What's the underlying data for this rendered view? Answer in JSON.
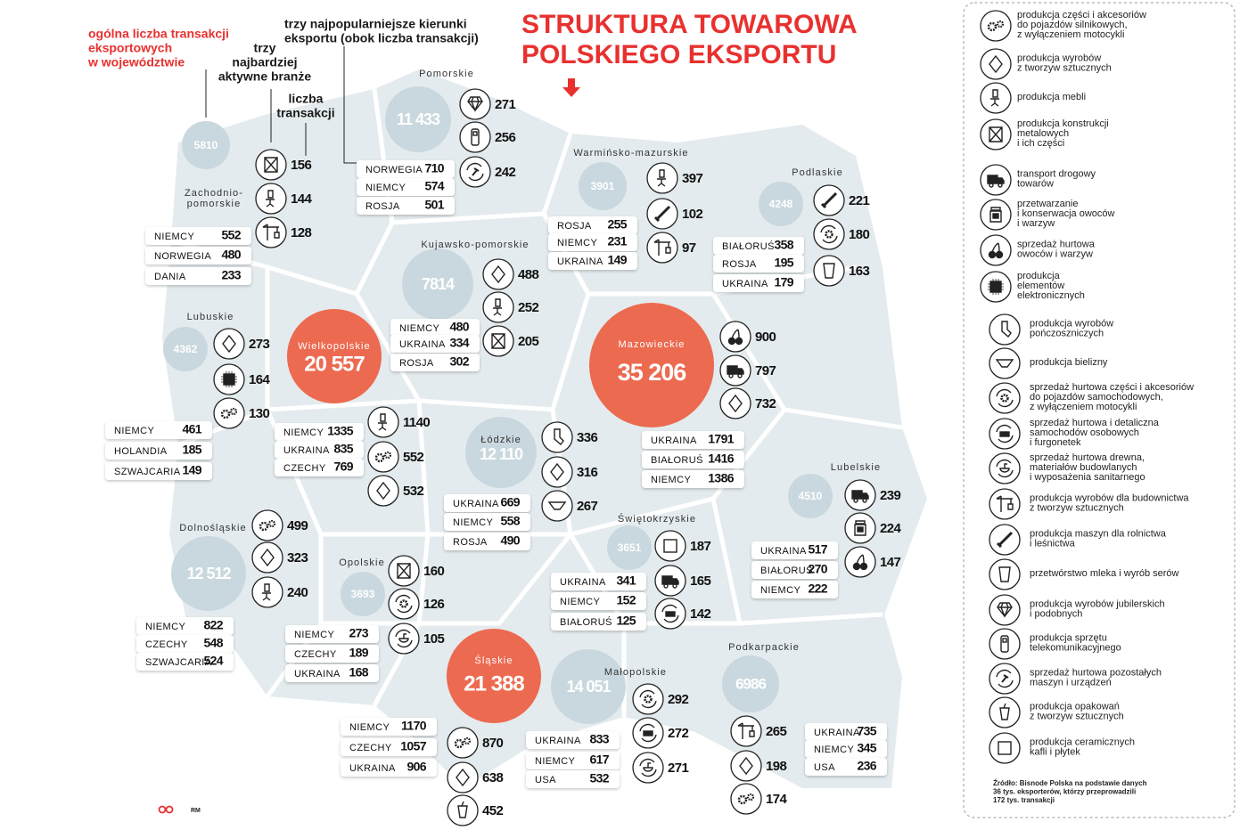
{
  "header": {
    "title": [
      "STRUKTURA TOWAROWA",
      "POLSKIEGO EKSPORTU"
    ]
  },
  "key": {
    "total": [
      "ogólna liczba transakcji",
      "eksportowych",
      "w województwie"
    ],
    "industries": [
      "trzy",
      "najbardziej",
      "aktywne branże"
    ],
    "count": [
      "liczba",
      "transakcji"
    ],
    "destinations": [
      "trzy najpopularniejsze kierunki",
      "eksportu (obok liczba transakcji)"
    ]
  },
  "regions": [
    {
      "name": [
        "Pomorskie"
      ],
      "total": "11 433",
      "industries": [
        "271",
        "256",
        "242"
      ],
      "destinations": [
        [
          "NORWEGIA",
          "710"
        ],
        [
          "NIEMCY",
          "574"
        ],
        [
          "ROSJA",
          "501"
        ]
      ]
    },
    {
      "name": [
        "Zachodnio-",
        "pomorskie"
      ],
      "total": "5810",
      "industries": [
        "156",
        "144",
        "128"
      ],
      "destinations": [
        [
          "NIEMCY",
          "552"
        ],
        [
          "NORWEGIA",
          "480"
        ],
        [
          "DANIA",
          "233"
        ]
      ]
    },
    {
      "name": [
        "Warmińsko-mazurskie"
      ],
      "total": "3901",
      "industries": [
        "397",
        "102",
        "97"
      ],
      "destinations": [
        [
          "ROSJA",
          "255"
        ],
        [
          "NIEMCY",
          "231"
        ],
        [
          "UKRAINA",
          "149"
        ]
      ]
    },
    {
      "name": [
        "Podlaskie"
      ],
      "total": "4248",
      "industries": [
        "221",
        "180",
        "163"
      ],
      "destinations": [
        [
          "BIAŁORUŚ",
          "358"
        ],
        [
          "ROSJA",
          "195"
        ],
        [
          "UKRAINA",
          "179"
        ]
      ]
    },
    {
      "name": [
        "Kujawsko-pomorskie"
      ],
      "total": "7814",
      "industries": [
        "488",
        "252",
        "205"
      ],
      "destinations": [
        [
          "NIEMCY",
          "480"
        ],
        [
          "UKRAINA",
          "334"
        ],
        [
          "ROSJA",
          "302"
        ]
      ]
    },
    {
      "name": [
        "Lubuskie"
      ],
      "total": "4362",
      "industries": [
        "273",
        "164",
        "130"
      ],
      "destinations": [
        [
          "NIEMCY",
          "461"
        ],
        [
          "HOLANDIA",
          "185"
        ],
        [
          "SZWAJCARIA",
          "149"
        ]
      ]
    },
    {
      "name": [
        "Wielkopolskie"
      ],
      "total": "20 557",
      "industries": [
        "1140",
        "552",
        "532"
      ],
      "destinations": [
        [
          "NIEMCY",
          "1335"
        ],
        [
          "UKRAINA",
          "835"
        ],
        [
          "CZECHY",
          "769"
        ]
      ]
    },
    {
      "name": [
        "Mazowieckie"
      ],
      "total": "35 206",
      "industries": [
        "900",
        "797",
        "732"
      ],
      "destinations": [
        [
          "UKRAINA",
          "1791"
        ],
        [
          "BIAŁORUŚ",
          "1416"
        ],
        [
          "NIEMCY",
          "1386"
        ]
      ]
    },
    {
      "name": [
        "Łódzkie"
      ],
      "total": "12 110",
      "industries": [
        "336",
        "316",
        "267"
      ],
      "destinations": [
        [
          "UKRAINA",
          "669"
        ],
        [
          "NIEMCY",
          "558"
        ],
        [
          "ROSJA",
          "490"
        ]
      ]
    },
    {
      "name": [
        "Lubelskie"
      ],
      "total": "4510",
      "industries": [
        "239",
        "224",
        "147"
      ],
      "destinations": [
        [
          "UKRAINA",
          "517"
        ],
        [
          "BIAŁORUŚ",
          "270"
        ],
        [
          "NIEMCY",
          "222"
        ]
      ]
    },
    {
      "name": [
        "Świętokrzyskie"
      ],
      "total": "3651",
      "industries": [
        "187",
        "165",
        "142"
      ],
      "destinations": [
        [
          "UKRAINA",
          "341"
        ],
        [
          "NIEMCY",
          "152"
        ],
        [
          "BIAŁORUŚ",
          "125"
        ]
      ]
    },
    {
      "name": [
        "Dolnośląskie"
      ],
      "total": "12 512",
      "industries": [
        "499",
        "323",
        "240"
      ],
      "destinations": [
        [
          "NIEMCY",
          "822"
        ],
        [
          "CZECHY",
          "548"
        ],
        [
          "SZWAJCARIA",
          "524"
        ]
      ]
    },
    {
      "name": [
        "Opolskie"
      ],
      "total": "3693",
      "industries": [
        "160",
        "126",
        "105"
      ],
      "destinations": [
        [
          "NIEMCY",
          "273"
        ],
        [
          "CZECHY",
          "189"
        ],
        [
          "UKRAINA",
          "168"
        ]
      ]
    },
    {
      "name": [
        "Śląskie"
      ],
      "total": "21 388",
      "industries": [
        "870",
        "638",
        "452"
      ],
      "destinations": [
        [
          "NIEMCY",
          "1170"
        ],
        [
          "CZECHY",
          "1057"
        ],
        [
          "UKRAINA",
          "906"
        ]
      ]
    },
    {
      "name": [
        "Małopolskie"
      ],
      "total": "14 051",
      "industries": [
        "292",
        "272",
        "271"
      ],
      "destinations": [
        [
          "UKRAINA",
          "833"
        ],
        [
          "NIEMCY",
          "617"
        ],
        [
          "USA",
          "532"
        ]
      ]
    },
    {
      "name": [
        "Podkarpackie"
      ],
      "total": "6986",
      "industries": [
        "265",
        "198",
        "174"
      ],
      "destinations": [
        [
          "UKRAINA",
          "735"
        ],
        [
          "NIEMCY",
          "345"
        ],
        [
          "USA",
          "236"
        ]
      ]
    }
  ],
  "legend": [
    [
      "produkcja części i akcesoriów",
      "do pojazdów silnikowych,",
      "z wyłączeniem motocykli"
    ],
    [
      "produkcja wyrobów",
      "z tworzyw sztucznych"
    ],
    [
      "produkcja mebli"
    ],
    [
      "produkcja konstrukcji",
      "metalowych",
      "i ich części"
    ],
    [
      "transport drogowy",
      "towarów"
    ],
    [
      "przetwarzanie",
      "i konserwacja owoców",
      "i warzyw"
    ],
    [
      "sprzedaż hurtowa",
      "owoców i warzyw"
    ],
    [
      "produkcja",
      "elementów",
      "elektronicznych"
    ],
    [
      "produkcja wyrobów",
      "pończoszniczych"
    ],
    [
      "produkcja bielizny"
    ],
    [
      "sprzedaż hurtowa części i akcesoriów",
      "do pojazdów samochodowych,",
      "z wyłączeniem motocykli"
    ],
    [
      "sprzedaż hurtowa i detaliczna",
      "samochodów osobowych",
      "i furgonetek"
    ],
    [
      "sprzedaż hurtowa drewna,",
      "materiałów budowlanych",
      "i wyposażenia sanitarnego"
    ],
    [
      "produkcja wyrobów dla budownictwa",
      "z tworzyw sztucznych"
    ],
    [
      "produkcja maszyn dla rolnictwa",
      "i leśnictwa"
    ],
    [
      "przetwórstwo mleka i wyrób serów"
    ],
    [
      "produkcja wyrobów jubilerskich",
      "i podobnych"
    ],
    [
      "produkcja sprzętu",
      "telekomunikacyjnego"
    ],
    [
      "sprzedaż hurtowa pozostałych",
      "maszyn i urządzeń"
    ],
    [
      "produkcja opakowań",
      "z tworzyw sztucznych"
    ],
    [
      "produkcja ceramicznych",
      "kafli i płytek"
    ]
  ],
  "source": [
    "Źródło: Bisnode Polska na podstawie danych",
    "36 tys. eksporterów, którzy przeprowadzili",
    "172 tys. transakcji"
  ],
  "logo": "RM"
}
